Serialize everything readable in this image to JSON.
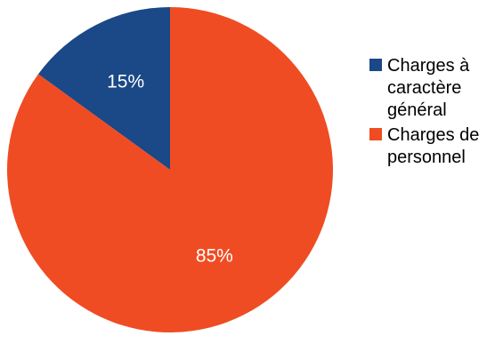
{
  "chart_data": {
    "type": "pie",
    "categories": [
      "Charges à\ncaractère\ngénéral",
      "Charges de\npersonnel"
    ],
    "values": [
      15,
      85
    ],
    "labels": [
      "15%",
      "85%"
    ],
    "colors": [
      "#1b4887",
      "#ef4c23"
    ],
    "start": "12 o'clock",
    "direction": "counter-clockwise",
    "legend_position": "right"
  }
}
